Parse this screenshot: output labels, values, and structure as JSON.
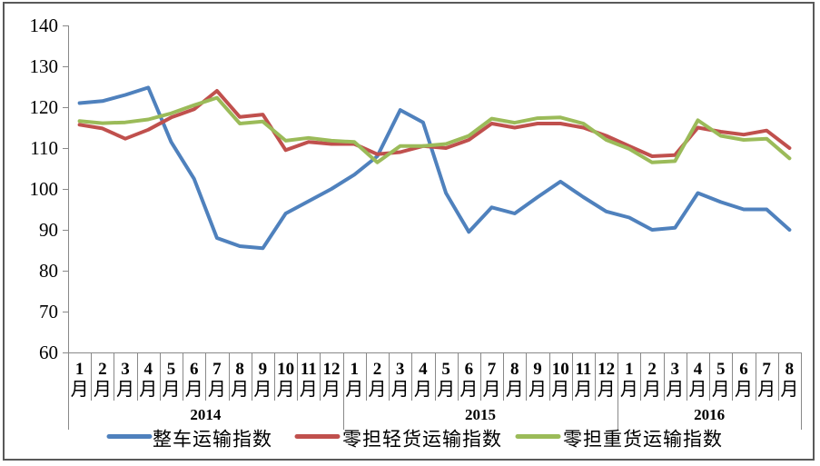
{
  "chart_data": {
    "type": "line",
    "title": "",
    "xlabel": "",
    "ylabel": "",
    "ylim": [
      60,
      140
    ],
    "ytick_step": 10,
    "grid": false,
    "legend_position": "bottom",
    "month_suffix": "月",
    "x_groups": [
      {
        "year": "2014",
        "months": [
          "1",
          "2",
          "3",
          "4",
          "5",
          "6",
          "7",
          "8",
          "9",
          "10",
          "11",
          "12"
        ]
      },
      {
        "year": "2015",
        "months": [
          "1",
          "2",
          "3",
          "4",
          "5",
          "6",
          "7",
          "8",
          "9",
          "10",
          "11",
          "12"
        ]
      },
      {
        "year": "2016",
        "months": [
          "1",
          "2",
          "3",
          "4",
          "5",
          "6",
          "7",
          "8"
        ]
      }
    ],
    "series": [
      {
        "name": "整车运输指数",
        "color": "#4F81BD",
        "values": [
          121,
          121.5,
          123,
          124.8,
          111.5,
          102.5,
          88,
          86,
          85.5,
          94,
          97,
          100,
          103.5,
          108,
          119.3,
          116.3,
          99,
          89.5,
          95.5,
          94,
          98,
          101.8,
          98,
          94.5,
          93,
          90,
          90.5,
          99,
          96.8,
          95,
          95,
          90
        ]
      },
      {
        "name": "零担轻货运输指数",
        "color": "#C0504D",
        "values": [
          115.7,
          114.8,
          112.3,
          114.5,
          117.5,
          119.5,
          124,
          117.6,
          118.2,
          109.5,
          111.5,
          111,
          111,
          108.5,
          109,
          110.5,
          110,
          112,
          116,
          115,
          116,
          116,
          115,
          113,
          110.5,
          108,
          108.3,
          115,
          114,
          113.3,
          114.3,
          110
        ]
      },
      {
        "name": "零担重货运输指数",
        "color": "#9BBB59",
        "values": [
          116.6,
          116.1,
          116.3,
          117,
          118.5,
          120.5,
          122.3,
          116,
          116.5,
          111.8,
          112.5,
          111.8,
          111.5,
          106.5,
          110.5,
          110.5,
          111,
          113,
          117.2,
          116.2,
          117.3,
          117.5,
          116,
          112,
          109.8,
          106.5,
          106.8,
          116.8,
          113,
          112,
          112.3,
          107.5
        ]
      }
    ],
    "axis_color": "#898989",
    "border_color": "#595959"
  }
}
